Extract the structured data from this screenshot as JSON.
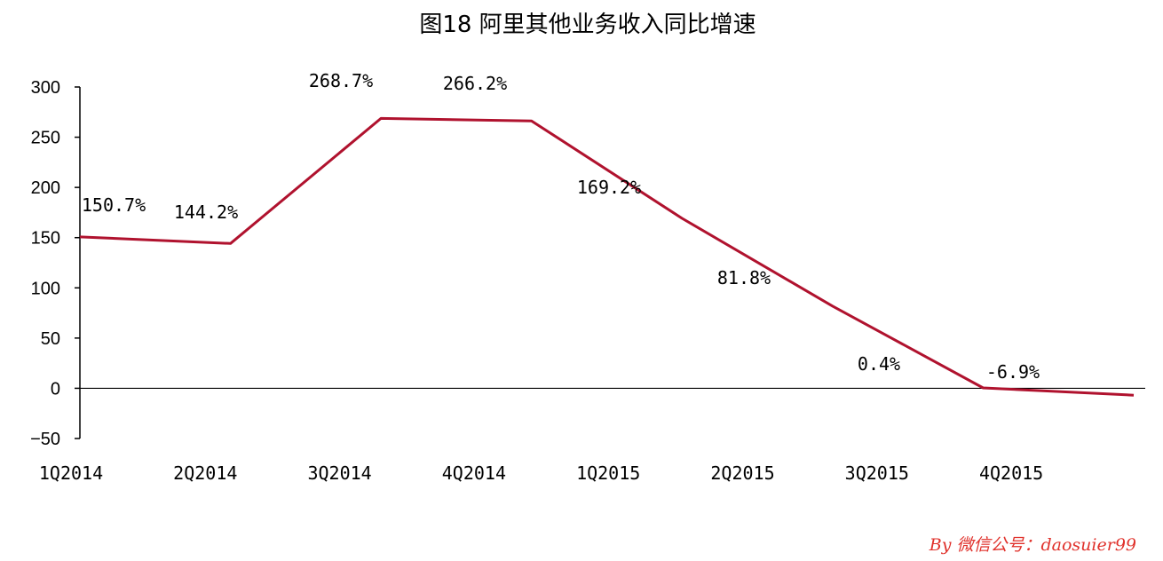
{
  "chart_data": {
    "type": "line",
    "title": "图18 阿里其他业务收入同比增速",
    "categories": [
      "1Q2014",
      "2Q2014",
      "3Q2014",
      "4Q2014",
      "1Q2015",
      "2Q2015",
      "3Q2015",
      "4Q2015"
    ],
    "series": [
      {
        "values": [
          150.7,
          144.2,
          268.7,
          266.2,
          169.2,
          81.8,
          0.4,
          -6.9
        ],
        "labels": [
          "150.7%",
          "144.2%",
          "268.7%",
          "266.2%",
          "169.2%",
          "81.8%",
          "0.4%",
          "-6.9%"
        ],
        "color": "#b0122e"
      }
    ],
    "yticks": [
      "300",
      "250",
      "200",
      "150",
      "100",
      "50",
      "0",
      "−50"
    ],
    "ylim": [
      -50,
      300
    ],
    "grid": false
  },
  "credit": "By 微信公号：daosuier99"
}
